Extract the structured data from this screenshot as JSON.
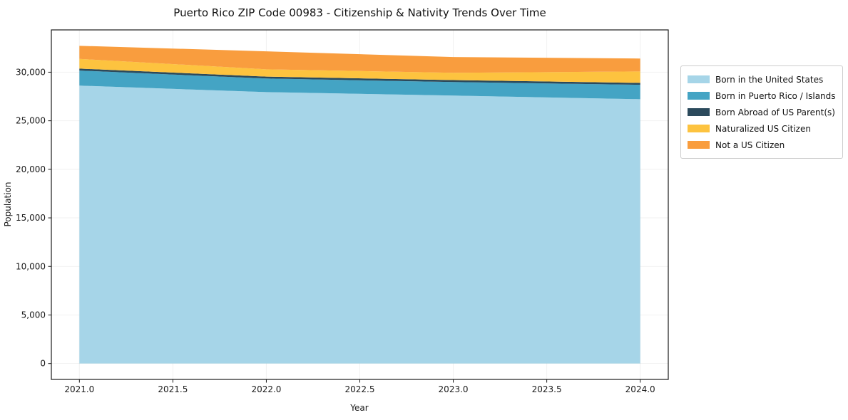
{
  "chart_data": {
    "type": "area",
    "stacked": true,
    "title": "Puerto Rico ZIP Code 00983 - Citizenship & Nativity Trends Over Time",
    "xlabel": "Year",
    "ylabel": "Population",
    "x": [
      2021,
      2022,
      2023,
      2024
    ],
    "series": [
      {
        "name": "Born in the United States",
        "color": "#a6d5e8",
        "values": [
          28620,
          27950,
          27590,
          27220
        ]
      },
      {
        "name": "Born in Puerto Rico / Islands",
        "color": "#44a4c4",
        "values": [
          1550,
          1400,
          1400,
          1480
        ]
      },
      {
        "name": "Born Abroad of US Parent(s)",
        "color": "#2b4a5c",
        "values": [
          200,
          200,
          200,
          200
        ]
      },
      {
        "name": "Naturalized US Citizen",
        "color": "#fdc33f",
        "values": [
          1000,
          750,
          750,
          1180
        ]
      },
      {
        "name": "Not a US Citizen",
        "color": "#f99d3e",
        "values": [
          1350,
          1850,
          1620,
          1330
        ]
      }
    ],
    "x_ticks": [
      {
        "value": 2021.0,
        "label": "2021.0"
      },
      {
        "value": 2021.5,
        "label": "2021.5"
      },
      {
        "value": 2022.0,
        "label": "2022.0"
      },
      {
        "value": 2022.5,
        "label": "2022.5"
      },
      {
        "value": 2023.0,
        "label": "2023.0"
      },
      {
        "value": 2023.5,
        "label": "2023.5"
      },
      {
        "value": 2024.0,
        "label": "2024.0"
      }
    ],
    "y_ticks": [
      {
        "value": 0,
        "label": "0"
      },
      {
        "value": 5000,
        "label": "5,000"
      },
      {
        "value": 10000,
        "label": "10,000"
      },
      {
        "value": 15000,
        "label": "15,000"
      },
      {
        "value": 20000,
        "label": "20,000"
      },
      {
        "value": 25000,
        "label": "25,000"
      },
      {
        "value": 30000,
        "label": "30,000"
      }
    ],
    "xlim": [
      2020.85,
      2024.15
    ],
    "ylim": [
      -1636,
      34356
    ],
    "grid": true,
    "legend_position": "right-outside"
  }
}
